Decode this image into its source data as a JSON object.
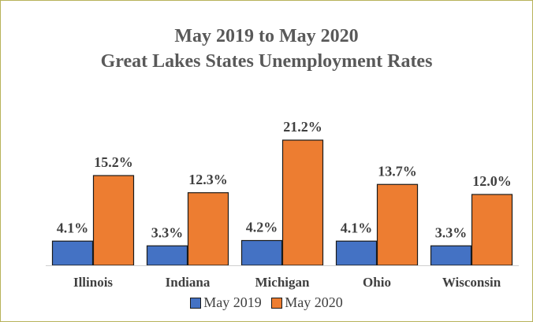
{
  "chart_data": {
    "type": "bar",
    "title_line1": "May 2019 to May 2020",
    "title_line2": "Great Lakes States Unemployment Rates",
    "categories": [
      "Illinois",
      "Indiana",
      "Michigan",
      "Ohio",
      "Wisconsin"
    ],
    "series": [
      {
        "name": "May 2019",
        "color": "#4472c4",
        "values": [
          4.1,
          3.3,
          4.2,
          4.1,
          3.3
        ],
        "labels": [
          "4.1%",
          "3.3%",
          "4.2%",
          "4.1%",
          "3.3%"
        ]
      },
      {
        "name": "May 2020",
        "color": "#ed7d31",
        "values": [
          15.2,
          12.3,
          21.2,
          13.7,
          12.0
        ],
        "labels": [
          "15.2%",
          "12.3%",
          "21.2%",
          "13.7%",
          "12.0%"
        ]
      }
    ],
    "ylim": [
      0,
      25
    ],
    "grid": false,
    "legend_position": "bottom"
  }
}
